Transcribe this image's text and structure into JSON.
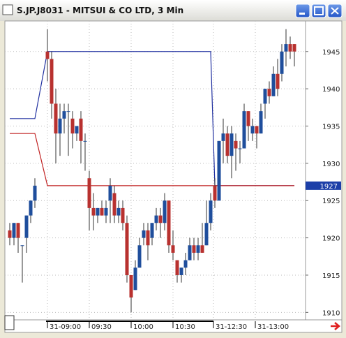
{
  "window": {
    "title": "S.JP.J8031 - MITSUI & CO LTD, 3 Min"
  },
  "chart_data": {
    "type": "candlestick",
    "open": [
      1921,
      1920,
      1922,
      1919,
      1920,
      1923,
      1925,
      1945,
      1944,
      1938,
      1934,
      1936,
      1937,
      1936,
      1934,
      1936,
      1933,
      1928,
      1924,
      1923,
      1924,
      1923,
      1925,
      1926,
      1923,
      1924,
      1922,
      1915,
      1913,
      1916,
      1920,
      1921,
      1920,
      1922,
      1923,
      1922,
      1925,
      1919,
      1917,
      1915,
      1916,
      1917,
      1919,
      1918,
      1919,
      1919,
      1922,
      1927,
      1925,
      1933,
      1934,
      1931,
      1933,
      1932,
      1932,
      1937,
      1934,
      1935,
      1934,
      1938,
      1940,
      1939,
      1942,
      1942,
      1945,
      1946,
      1946
    ],
    "high": [
      1922,
      1922,
      1922,
      1919,
      1923,
      1925,
      1928,
      1948,
      1945,
      1940,
      1938,
      1938,
      1938,
      1937,
      1935,
      1937,
      1934,
      1929,
      1926,
      1924,
      1925,
      1925,
      1928,
      1927,
      1925,
      1925,
      1923,
      1915,
      1917,
      1920,
      1922,
      1922,
      1922,
      1924,
      1924,
      1926,
      1925,
      1921,
      1917,
      1916,
      1918,
      1920,
      1920,
      1920,
      1922,
      1925,
      1926,
      1928,
      1933,
      1936,
      1935,
      1935,
      1934,
      1933,
      1938,
      1937,
      1936,
      1935,
      1938,
      1940,
      1941,
      1943,
      1944,
      1946,
      1948,
      1947,
      1946
    ],
    "low": [
      1919,
      1919,
      1918,
      1914,
      1918,
      1922,
      1924,
      1941,
      1936,
      1930,
      1931,
      1934,
      1931,
      1932,
      1933,
      1930,
      1929,
      1921,
      1921,
      1922,
      1923,
      1922,
      1922,
      1922,
      1922,
      1921,
      1914,
      1910,
      1913,
      1916,
      1919,
      1917,
      1919,
      1921,
      1920,
      1921,
      1918,
      1917,
      1914,
      1914,
      1915,
      1917,
      1917,
      1917,
      1918,
      1919,
      1921,
      1924,
      1925,
      1930,
      1930,
      1928,
      1929,
      1930,
      1932,
      1933,
      1933,
      1932,
      1934,
      1936,
      1938,
      1939,
      1939,
      1941,
      1943,
      1944,
      1943
    ],
    "close": [
      1920,
      1922,
      1920,
      1919,
      1923,
      1925,
      1927,
      1944,
      1938,
      1934,
      1936,
      1937,
      1937,
      1934,
      1935,
      1933,
      1933,
      1924,
      1923,
      1924,
      1923,
      1924,
      1927,
      1923,
      1924,
      1922,
      1915,
      1912,
      1916,
      1919,
      1921,
      1919,
      1922,
      1923,
      1922,
      1925,
      1919,
      1918,
      1915,
      1916,
      1917,
      1919,
      1918,
      1919,
      1918,
      1922,
      1925,
      1925,
      1933,
      1934,
      1931,
      1934,
      1932,
      1932,
      1937,
      1935,
      1935,
      1934,
      1937,
      1940,
      1939,
      1942,
      1940,
      1945,
      1946,
      1945,
      1945
    ],
    "up_color": "#1f4e9c",
    "down_color": "#b8312f",
    "lines": [
      {
        "color": "#2030a0",
        "values": [
          1936,
          1936,
          1936,
          1936,
          1936,
          1936,
          1936,
          1945,
          1945,
          1945,
          1945,
          1945,
          1945,
          1945,
          1945,
          1945,
          1945,
          1945,
          1945,
          1945,
          1945,
          1945,
          1945,
          1945,
          1945,
          1945,
          1945,
          1945,
          1945,
          1945,
          1945,
          1945,
          1945,
          1945,
          1945,
          1945,
          1945,
          1945,
          1945,
          1945,
          1945,
          1945,
          1945,
          1945,
          1945,
          1945,
          1945,
          1927,
          1927,
          1927,
          1927,
          1927,
          1927,
          1927,
          1927,
          1927,
          1927,
          1927,
          1927,
          1927,
          1927,
          1927,
          1927,
          1927,
          1927,
          1927,
          1927
        ]
      },
      {
        "color": "#c02020",
        "values": [
          1934,
          1934,
          1934,
          1934,
          1934,
          1934,
          1934,
          1927,
          1927,
          1927,
          1927,
          1927,
          1927,
          1927,
          1927,
          1927,
          1927,
          1927,
          1927,
          1927,
          1927,
          1927,
          1927,
          1927,
          1927,
          1927,
          1927,
          1927,
          1927,
          1927,
          1927,
          1927,
          1927,
          1927,
          1927,
          1927,
          1927,
          1927,
          1927,
          1927,
          1927,
          1927,
          1927,
          1927,
          1927,
          1927,
          1927,
          1927,
          1927,
          1927,
          1927,
          1927,
          1927,
          1927,
          1927,
          1927,
          1927,
          1927,
          1927,
          1927,
          1927,
          1927,
          1927,
          1927,
          1927,
          1927,
          1927
        ]
      }
    ],
    "last_price": 1927,
    "x_labels": [
      "31-09:00",
      "09:30",
      "10:00",
      "10:30",
      "31-12:30",
      "31-13:00"
    ],
    "ylim": [
      1909,
      1949.1
    ],
    "yticks": [
      1910,
      1915,
      1920,
      1925,
      1930,
      1935,
      1940,
      1945
    ],
    "grid": true
  }
}
